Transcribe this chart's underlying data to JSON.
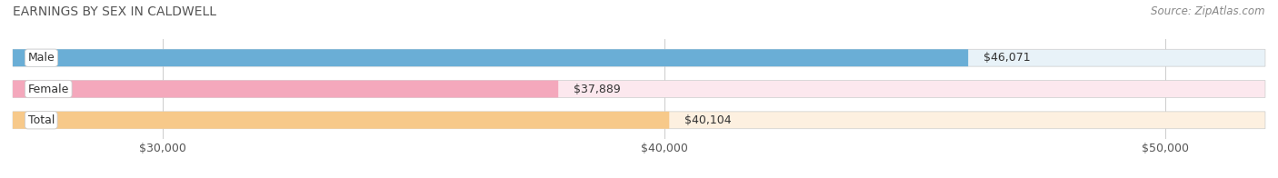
{
  "title": "EARNINGS BY SEX IN CALDWELL",
  "source": "Source: ZipAtlas.com",
  "categories": [
    "Male",
    "Female",
    "Total"
  ],
  "values": [
    46071,
    37889,
    40104
  ],
  "bar_colors": [
    "#6aaed6",
    "#f4a8bc",
    "#f7c98a"
  ],
  "bar_bg_colors": [
    "#e8f2f8",
    "#fce8ee",
    "#fdf0e0"
  ],
  "value_labels": [
    "$46,071",
    "$37,889",
    "$40,104"
  ],
  "xlim": [
    27000,
    52000
  ],
  "xticks": [
    30000,
    40000,
    50000
  ],
  "xtick_labels": [
    "$30,000",
    "$40,000",
    "$50,000"
  ],
  "bar_height": 0.55,
  "title_fontsize": 10,
  "label_fontsize": 9,
  "tick_fontsize": 9,
  "source_fontsize": 8.5
}
